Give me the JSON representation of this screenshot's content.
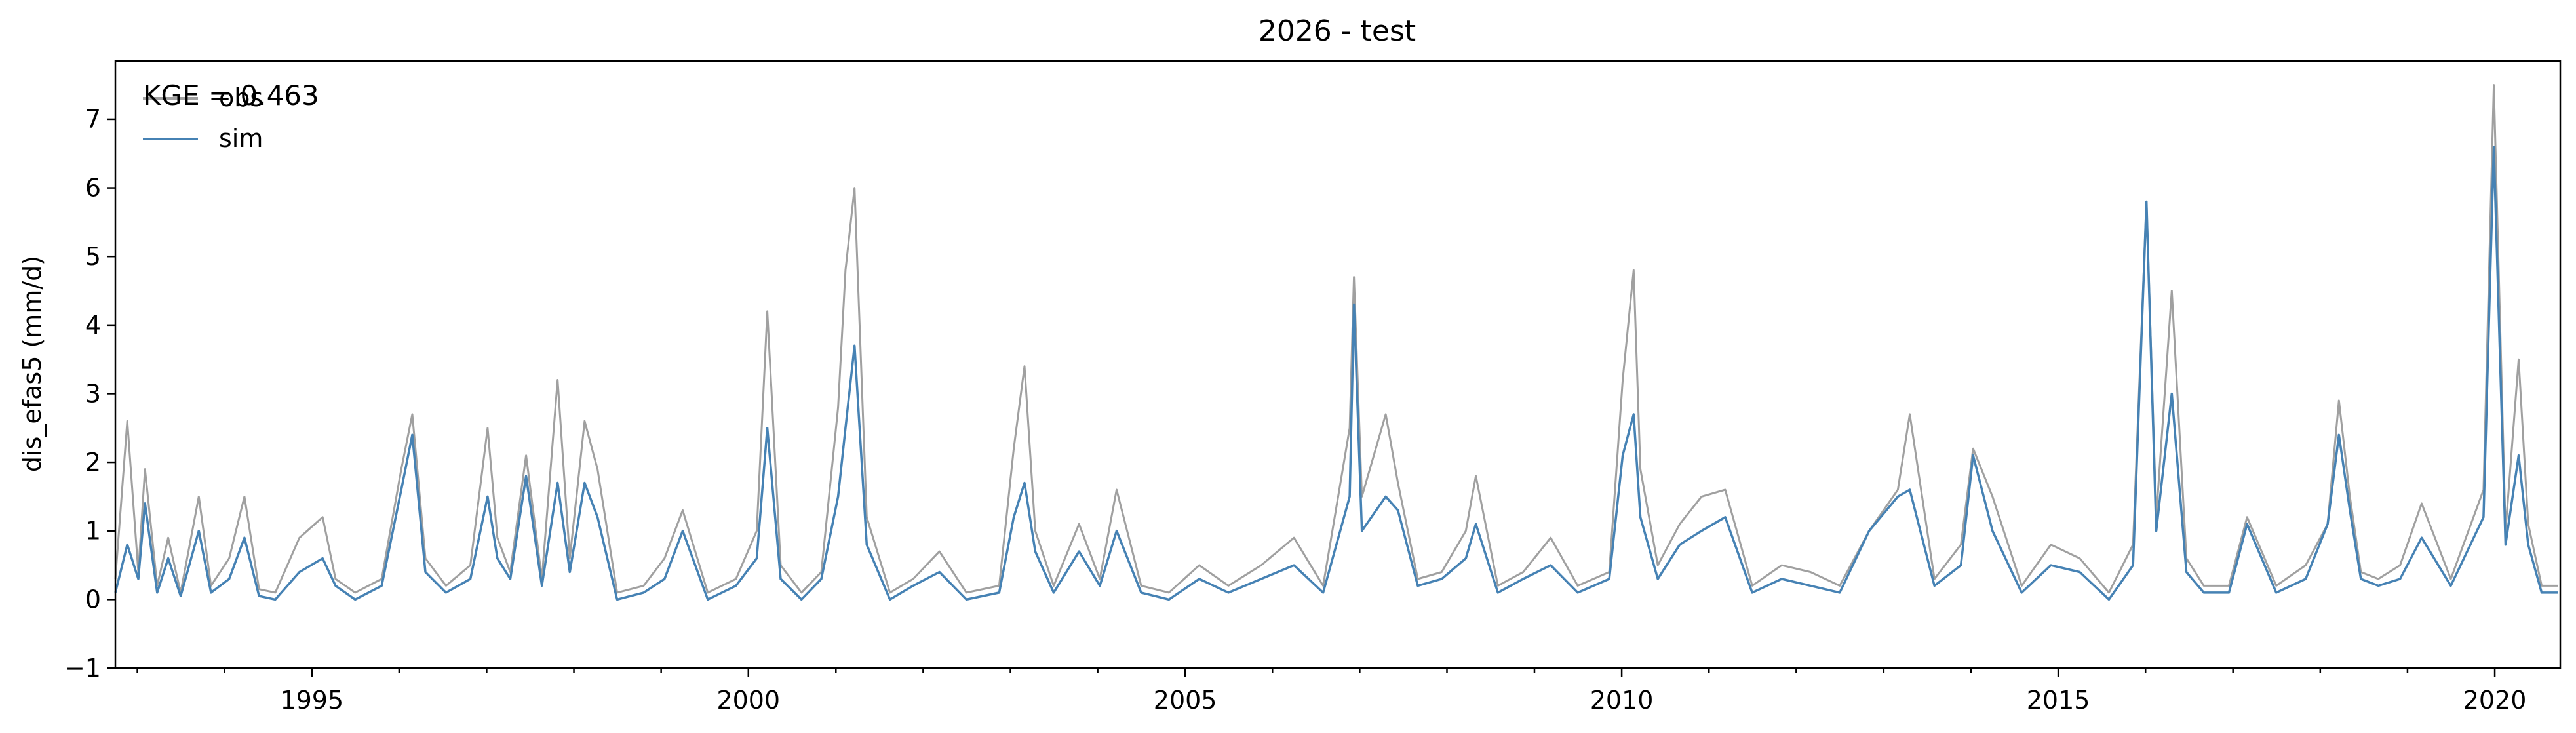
{
  "chart_data": {
    "type": "line",
    "title": "2026 - test",
    "xlabel": "",
    "ylabel": "dis_efas5 (mm/d)",
    "xlim": [
      "1992-10-01",
      "2020-10-01"
    ],
    "ylim": [
      -1,
      7.85
    ],
    "x_ticks": [
      "1995",
      "2000",
      "2005",
      "2010",
      "2015",
      "2020"
    ],
    "y_ticks": [
      "−1",
      "0",
      "1",
      "2",
      "3",
      "4",
      "5",
      "6",
      "7"
    ],
    "grid": false,
    "legend": {
      "position": "top-left",
      "entries": [
        "obs",
        "sim"
      ]
    },
    "annotation": "KGE = 0.463",
    "colors": {
      "obs": "#a0a0a0",
      "sim": "#4682b4",
      "axes": "#000000"
    },
    "series": [
      {
        "name": "obs",
        "x": [
          "1992-10-01",
          "1992-11-20",
          "1993-01-05",
          "1993-02-02",
          "1993-03-25",
          "1993-05-10",
          "1993-07-01",
          "1993-09-15",
          "1993-11-05",
          "1994-01-20",
          "1994-03-25",
          "1994-05-25",
          "1994-08-01",
          "1994-11-10",
          "1995-02-15",
          "1995-04-10",
          "1995-07-01",
          "1995-10-20",
          "1996-01-10",
          "1996-02-25",
          "1996-04-20",
          "1996-07-15",
          "1996-10-25",
          "1997-01-05",
          "1997-02-15",
          "1997-04-10",
          "1997-06-15",
          "1997-08-20",
          "1997-10-25",
          "1997-12-15",
          "1998-02-15",
          "1998-04-10",
          "1998-07-01",
          "1998-10-20",
          "1999-01-15",
          "1999-04-01",
          "1999-07-15",
          "1999-11-10",
          "2000-02-05",
          "2000-03-20",
          "2000-05-15",
          "2000-08-10",
          "2000-11-01",
          "2001-01-10",
          "2001-02-10",
          "2001-03-20",
          "2001-05-10",
          "2001-08-15",
          "2001-11-20",
          "2002-03-10",
          "2002-07-01",
          "2002-11-15",
          "2003-01-15",
          "2003-03-01",
          "2003-04-15",
          "2003-07-01",
          "2003-10-15",
          "2004-01-10",
          "2004-03-20",
          "2004-07-01",
          "2004-10-25",
          "2005-03-01",
          "2005-07-01",
          "2005-11-15",
          "2006-04-01",
          "2006-08-01",
          "2006-11-20",
          "2006-12-08",
          "2007-01-10",
          "2007-04-20",
          "2007-06-10",
          "2007-09-01",
          "2007-12-10",
          "2008-03-20",
          "2008-05-01",
          "2008-08-01",
          "2008-11-15",
          "2009-03-10",
          "2009-07-01",
          "2009-11-10",
          "2010-01-05",
          "2010-02-20",
          "2010-03-20",
          "2010-06-01",
          "2010-09-01",
          "2010-12-01",
          "2011-03-10",
          "2011-07-01",
          "2011-11-01",
          "2012-03-01",
          "2012-07-01",
          "2012-11-01",
          "2013-03-01",
          "2013-04-20",
          "2013-08-01",
          "2013-11-20",
          "2014-01-10",
          "2014-04-01",
          "2014-08-01",
          "2014-12-01",
          "2015-04-01",
          "2015-08-01",
          "2015-11-10",
          "2016-01-05",
          "2016-02-15",
          "2016-04-20",
          "2016-06-20",
          "2016-09-01",
          "2016-12-15",
          "2017-03-01",
          "2017-07-01",
          "2017-11-01",
          "2018-02-01",
          "2018-03-20",
          "2018-05-05",
          "2018-06-20",
          "2018-09-01",
          "2018-12-01",
          "2019-03-01",
          "2019-07-01",
          "2019-11-15",
          "2019-12-28",
          "2020-02-15",
          "2020-04-10",
          "2020-05-20",
          "2020-07-15",
          "2020-09-20"
        ],
        "y": [
          0.3,
          2.6,
          0.4,
          1.9,
          0.2,
          0.9,
          0.1,
          1.5,
          0.2,
          0.6,
          1.5,
          0.15,
          0.1,
          0.9,
          1.2,
          0.3,
          0.1,
          0.3,
          1.9,
          2.7,
          0.6,
          0.2,
          0.5,
          2.5,
          0.9,
          0.4,
          2.1,
          0.3,
          3.2,
          0.6,
          2.6,
          1.9,
          0.1,
          0.2,
          0.6,
          1.3,
          0.1,
          0.3,
          1.0,
          4.2,
          0.5,
          0.1,
          0.4,
          2.8,
          4.8,
          6.0,
          1.2,
          0.1,
          0.3,
          0.7,
          0.1,
          0.2,
          2.2,
          3.4,
          1.0,
          0.2,
          1.1,
          0.3,
          1.6,
          0.2,
          0.1,
          0.5,
          0.2,
          0.5,
          0.9,
          0.2,
          2.5,
          4.7,
          1.5,
          2.7,
          1.7,
          0.3,
          0.4,
          1.0,
          1.8,
          0.2,
          0.4,
          0.9,
          0.2,
          0.4,
          3.2,
          4.8,
          1.9,
          0.5,
          1.1,
          1.5,
          1.6,
          0.2,
          0.5,
          0.4,
          0.2,
          1.0,
          1.6,
          2.7,
          0.3,
          0.8,
          2.2,
          1.5,
          0.2,
          0.8,
          0.6,
          0.1,
          0.8,
          5.8,
          1.2,
          4.5,
          0.6,
          0.2,
          0.2,
          1.2,
          0.2,
          0.5,
          1.1,
          2.9,
          1.5,
          0.4,
          0.3,
          0.5,
          1.4,
          0.3,
          1.6,
          7.5,
          1.0,
          3.5,
          1.1,
          0.2,
          0.2
        ]
      },
      {
        "name": "sim",
        "x": [
          "1992-10-01",
          "1992-11-20",
          "1993-01-05",
          "1993-02-02",
          "1993-03-25",
          "1993-05-10",
          "1993-07-01",
          "1993-09-15",
          "1993-11-05",
          "1994-01-20",
          "1994-03-25",
          "1994-05-25",
          "1994-08-01",
          "1994-11-10",
          "1995-02-15",
          "1995-04-10",
          "1995-07-01",
          "1995-10-20",
          "1996-01-10",
          "1996-02-25",
          "1996-04-20",
          "1996-07-15",
          "1996-10-25",
          "1997-01-05",
          "1997-02-15",
          "1997-04-10",
          "1997-06-15",
          "1997-08-20",
          "1997-10-25",
          "1997-12-15",
          "1998-02-15",
          "1998-04-10",
          "1998-07-01",
          "1998-10-20",
          "1999-01-15",
          "1999-04-01",
          "1999-07-15",
          "1999-11-10",
          "2000-02-05",
          "2000-03-20",
          "2000-05-15",
          "2000-08-10",
          "2000-11-01",
          "2001-01-10",
          "2001-02-10",
          "2001-03-20",
          "2001-05-10",
          "2001-08-15",
          "2001-11-20",
          "2002-03-10",
          "2002-07-01",
          "2002-11-15",
          "2003-01-15",
          "2003-03-01",
          "2003-04-15",
          "2003-07-01",
          "2003-10-15",
          "2004-01-10",
          "2004-03-20",
          "2004-07-01",
          "2004-10-25",
          "2005-03-01",
          "2005-07-01",
          "2005-11-15",
          "2006-04-01",
          "2006-08-01",
          "2006-11-20",
          "2006-12-08",
          "2007-01-10",
          "2007-04-20",
          "2007-06-10",
          "2007-09-01",
          "2007-12-10",
          "2008-03-20",
          "2008-05-01",
          "2008-08-01",
          "2008-11-15",
          "2009-03-10",
          "2009-07-01",
          "2009-11-10",
          "2010-01-05",
          "2010-02-20",
          "2010-03-20",
          "2010-06-01",
          "2010-09-01",
          "2010-12-01",
          "2011-03-10",
          "2011-07-01",
          "2011-11-01",
          "2012-03-01",
          "2012-07-01",
          "2012-11-01",
          "2013-03-01",
          "2013-04-20",
          "2013-08-01",
          "2013-11-20",
          "2014-01-10",
          "2014-04-01",
          "2014-08-01",
          "2014-12-01",
          "2015-04-01",
          "2015-08-01",
          "2015-11-10",
          "2016-01-05",
          "2016-02-15",
          "2016-04-20",
          "2016-06-20",
          "2016-09-01",
          "2016-12-15",
          "2017-03-01",
          "2017-07-01",
          "2017-11-01",
          "2018-02-01",
          "2018-03-20",
          "2018-05-05",
          "2018-06-20",
          "2018-09-01",
          "2018-12-01",
          "2019-03-01",
          "2019-07-01",
          "2019-11-15",
          "2019-12-28",
          "2020-02-15",
          "2020-04-10",
          "2020-05-20",
          "2020-07-15",
          "2020-09-20"
        ],
        "y": [
          0.1,
          0.8,
          0.3,
          1.4,
          0.1,
          0.6,
          0.05,
          1.0,
          0.1,
          0.3,
          0.9,
          0.05,
          0.0,
          0.4,
          0.6,
          0.2,
          0.0,
          0.2,
          1.6,
          2.4,
          0.4,
          0.1,
          0.3,
          1.5,
          0.6,
          0.3,
          1.8,
          0.2,
          1.7,
          0.4,
          1.7,
          1.2,
          0.0,
          0.1,
          0.3,
          1.0,
          0.0,
          0.2,
          0.6,
          2.5,
          0.3,
          0.0,
          0.3,
          1.5,
          2.5,
          3.7,
          0.8,
          0.0,
          0.2,
          0.4,
          0.0,
          0.1,
          1.2,
          1.7,
          0.7,
          0.1,
          0.7,
          0.2,
          1.0,
          0.1,
          0.0,
          0.3,
          0.1,
          0.3,
          0.5,
          0.1,
          1.5,
          4.3,
          1.0,
          1.5,
          1.3,
          0.2,
          0.3,
          0.6,
          1.1,
          0.1,
          0.3,
          0.5,
          0.1,
          0.3,
          2.1,
          2.7,
          1.2,
          0.3,
          0.8,
          1.0,
          1.2,
          0.1,
          0.3,
          0.2,
          0.1,
          1.0,
          1.5,
          1.6,
          0.2,
          0.5,
          2.1,
          1.0,
          0.1,
          0.5,
          0.4,
          0.0,
          0.5,
          5.8,
          1.0,
          3.0,
          0.4,
          0.1,
          0.1,
          1.1,
          0.1,
          0.3,
          1.1,
          2.4,
          1.3,
          0.3,
          0.2,
          0.3,
          0.9,
          0.2,
          1.2,
          6.6,
          0.8,
          2.1,
          0.8,
          0.1,
          0.1
        ]
      }
    ]
  }
}
